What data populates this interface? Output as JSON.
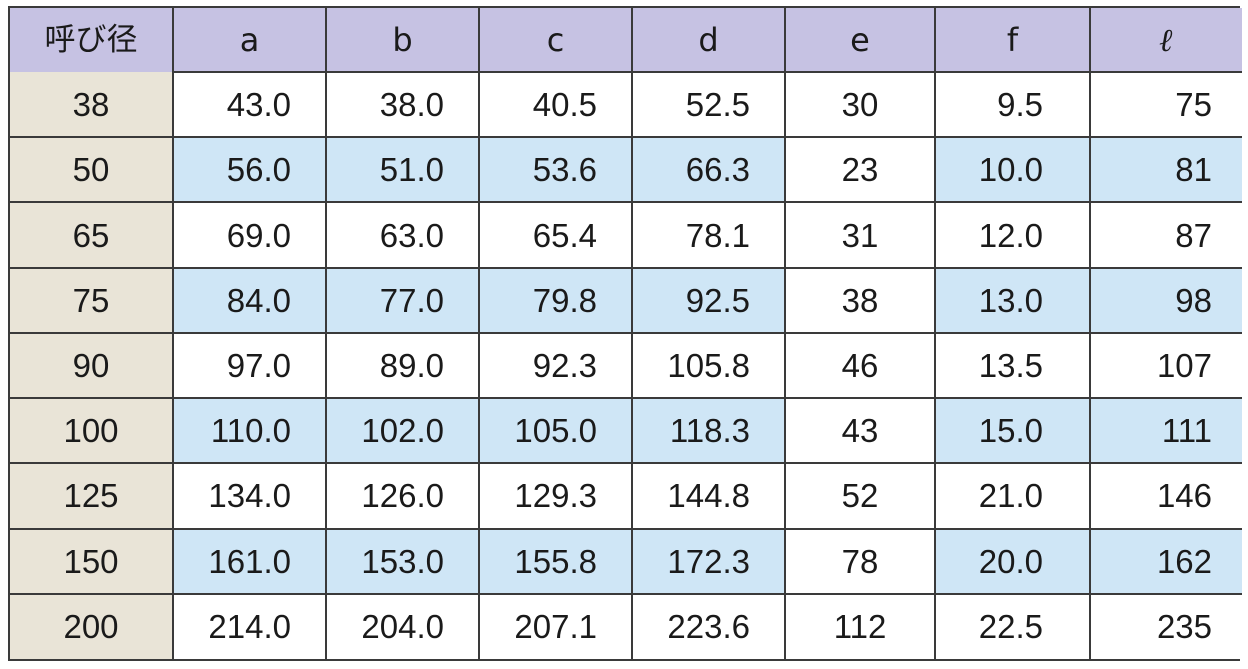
{
  "table": {
    "headers": [
      "呼び径",
      "a",
      "b",
      "c",
      "d",
      "e",
      "f",
      "ℓ"
    ],
    "rows": [
      {
        "nominal": "38",
        "a": "43.0",
        "b": "38.0",
        "c": "40.5",
        "d": "52.5",
        "e": "30",
        "f": "9.5",
        "l": "75"
      },
      {
        "nominal": "50",
        "a": "56.0",
        "b": "51.0",
        "c": "53.6",
        "d": "66.3",
        "e": "23",
        "f": "10.0",
        "l": "81"
      },
      {
        "nominal": "65",
        "a": "69.0",
        "b": "63.0",
        "c": "65.4",
        "d": "78.1",
        "e": "31",
        "f": "12.0",
        "l": "87"
      },
      {
        "nominal": "75",
        "a": "84.0",
        "b": "77.0",
        "c": "79.8",
        "d": "92.5",
        "e": "38",
        "f": "13.0",
        "l": "98"
      },
      {
        "nominal": "90",
        "a": "97.0",
        "b": "89.0",
        "c": "92.3",
        "d": "105.8",
        "e": "46",
        "f": "13.5",
        "l": "107"
      },
      {
        "nominal": "100",
        "a": "110.0",
        "b": "102.0",
        "c": "105.0",
        "d": "118.3",
        "e": "43",
        "f": "15.0",
        "l": "111"
      },
      {
        "nominal": "125",
        "a": "134.0",
        "b": "126.0",
        "c": "129.3",
        "d": "144.8",
        "e": "52",
        "f": "21.0",
        "l": "146"
      },
      {
        "nominal": "150",
        "a": "161.0",
        "b": "153.0",
        "c": "155.8",
        "d": "172.3",
        "e": "78",
        "f": "20.0",
        "l": "162"
      },
      {
        "nominal": "200",
        "a": "214.0",
        "b": "204.0",
        "c": "207.1",
        "d": "223.6",
        "e": "112",
        "f": "22.5",
        "l": "235"
      }
    ]
  },
  "colors": {
    "header_bg": "#c6c2e3",
    "row_header_bg": "#e9e4d7",
    "shaded_row_bg": "#cfe6f6",
    "plain_row_bg": "#ffffff",
    "border": "#3a3a3a"
  }
}
